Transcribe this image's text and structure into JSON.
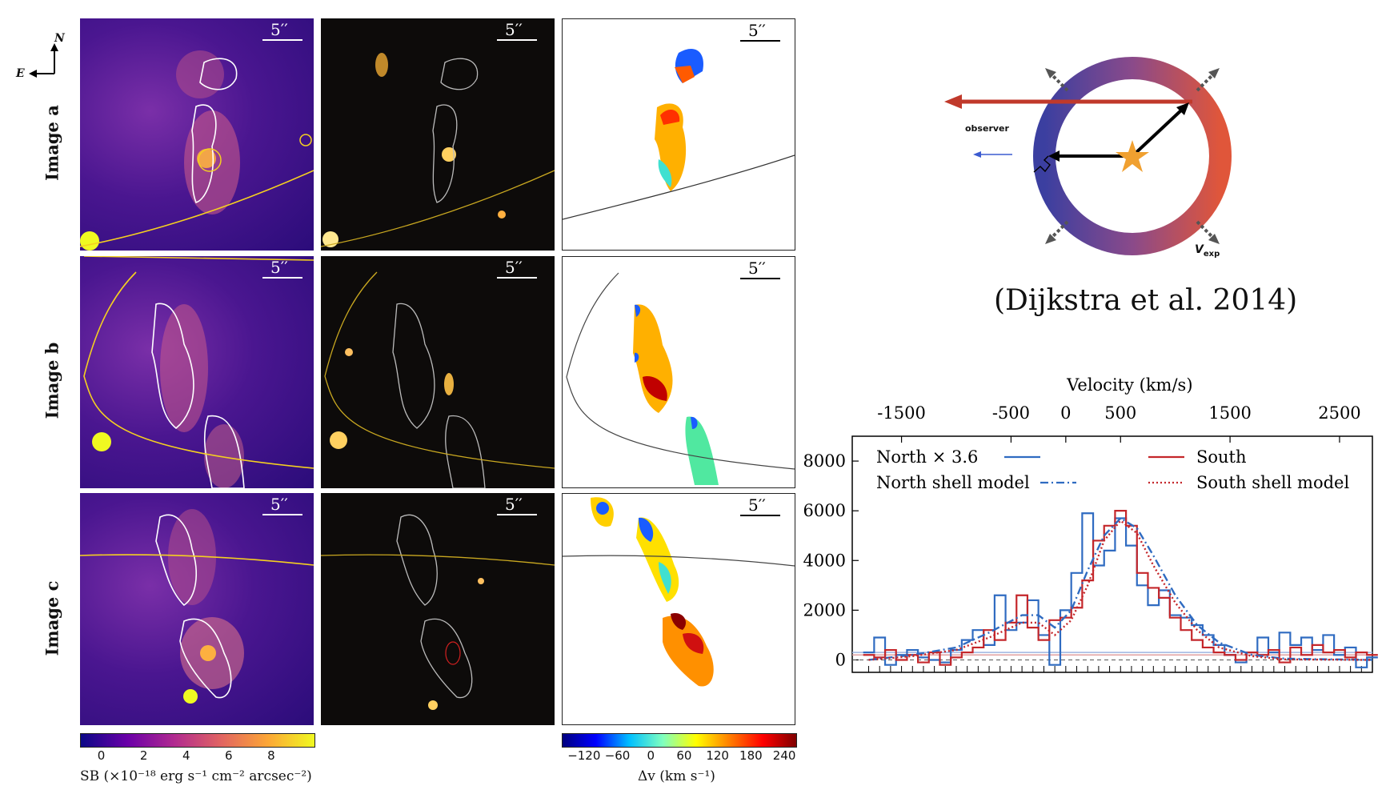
{
  "compass": {
    "north": "N",
    "east": "E"
  },
  "rows": [
    {
      "label": "Image a"
    },
    {
      "label": "Image b"
    },
    {
      "label": "Image c"
    }
  ],
  "scale_bar": "5′′",
  "colorbar_sb": {
    "ticks": [
      "0",
      "2",
      "4",
      "6",
      "8"
    ],
    "label": "SB (×10⁻¹⁸ erg s⁻¹ cm⁻² arcsec⁻²)",
    "colors": [
      "#0b0887",
      "#6a00a8",
      "#b12a90",
      "#e16462",
      "#fca636",
      "#f0f921"
    ]
  },
  "colorbar_dv": {
    "ticks": [
      "−120",
      "−60",
      "0",
      "60",
      "120",
      "180",
      "240"
    ],
    "label": "Δv (km s⁻¹)",
    "colors": [
      "#00007f",
      "#0000ff",
      "#00bfff",
      "#7fffbf",
      "#ffff00",
      "#ff7f00",
      "#ff0000",
      "#7f0000"
    ]
  },
  "shell_diagram": {
    "observer_label": "observer",
    "vexp_label": "V",
    "vexp_sub": "exp",
    "citation": "(Dijkstra et al. 2014)"
  },
  "chart_data": {
    "type": "line",
    "top_axis": {
      "label": "Velocity (km/s)",
      "ticks": [
        "-1500",
        "-500",
        "0",
        "500",
        "1500",
        "2500"
      ]
    },
    "y_ticks": [
      "0",
      "2000",
      "4000",
      "6000",
      "8000"
    ],
    "ylim": [
      -500,
      9000
    ],
    "legend": [
      {
        "name": "North × 3.6",
        "color": "#2f6bc1",
        "style": "solid"
      },
      {
        "name": "South",
        "color": "#c4262a",
        "style": "solid"
      },
      {
        "name": "North shell model",
        "color": "#2f6bc1",
        "style": "dashdot"
      },
      {
        "name": "South shell model",
        "color": "#c4262a",
        "style": "dotted"
      }
    ],
    "series": [
      {
        "name": "North × 3.6",
        "step": true,
        "x": [
          -1800,
          -1700,
          -1600,
          -1500,
          -1400,
          -1300,
          -1200,
          -1100,
          -1000,
          -900,
          -800,
          -700,
          -600,
          -500,
          -400,
          -300,
          -200,
          -100,
          0,
          100,
          200,
          300,
          400,
          500,
          600,
          700,
          800,
          900,
          1000,
          1100,
          1200,
          1300,
          1400,
          1500,
          1600,
          1700,
          1800,
          1900,
          2000,
          2100,
          2200,
          2300,
          2400,
          2500,
          2600,
          2700,
          2800
        ],
        "y": [
          300,
          900,
          -200,
          200,
          400,
          100,
          0,
          -100,
          400,
          800,
          1200,
          600,
          2600,
          1200,
          1500,
          2400,
          1000,
          -200,
          2000,
          3500,
          5900,
          3800,
          4400,
          5700,
          4600,
          3000,
          2200,
          2800,
          1800,
          1700,
          1400,
          1000,
          600,
          200,
          -100,
          300,
          900,
          300,
          1100,
          600,
          900,
          400,
          1000,
          200,
          500,
          -300,
          100
        ]
      },
      {
        "name": "South",
        "step": true,
        "x": [
          -1800,
          -1700,
          -1600,
          -1500,
          -1400,
          -1300,
          -1200,
          -1100,
          -1000,
          -900,
          -800,
          -700,
          -600,
          -500,
          -400,
          -300,
          -200,
          -100,
          0,
          100,
          200,
          300,
          400,
          500,
          600,
          700,
          800,
          900,
          1000,
          1100,
          1200,
          1300,
          1400,
          1500,
          1600,
          1700,
          1800,
          1900,
          2000,
          2100,
          2200,
          2300,
          2400,
          2500,
          2600,
          2700,
          2800
        ],
        "y": [
          200,
          100,
          400,
          0,
          200,
          -100,
          300,
          -200,
          100,
          300,
          500,
          1200,
          800,
          1500,
          2600,
          1300,
          800,
          1600,
          1700,
          2100,
          3200,
          4800,
          5400,
          6000,
          5400,
          3500,
          2900,
          2500,
          1700,
          1200,
          800,
          500,
          300,
          200,
          0,
          300,
          200,
          400,
          -100,
          500,
          200,
          600,
          300,
          400,
          100,
          300,
          200
        ]
      },
      {
        "name": "North shell model",
        "x": [
          -1800,
          -1400,
          -1000,
          -700,
          -400,
          -250,
          -100,
          50,
          200,
          350,
          500,
          650,
          800,
          1000,
          1200,
          1400,
          1700,
          2000,
          2800
        ],
        "y": [
          0,
          200,
          500,
          1100,
          1800,
          1800,
          1300,
          2000,
          3600,
          5000,
          5700,
          5300,
          4200,
          2600,
          1400,
          700,
          200,
          50,
          0
        ]
      },
      {
        "name": "South shell model",
        "x": [
          -1800,
          -1400,
          -1000,
          -700,
          -400,
          -250,
          -100,
          50,
          200,
          350,
          500,
          650,
          800,
          1000,
          1200,
          1400,
          1700,
          2000,
          2800
        ],
        "y": [
          0,
          150,
          400,
          900,
          1500,
          1500,
          1000,
          1600,
          3000,
          4800,
          5600,
          5100,
          3800,
          2300,
          1200,
          500,
          150,
          20,
          0
        ]
      }
    ]
  }
}
